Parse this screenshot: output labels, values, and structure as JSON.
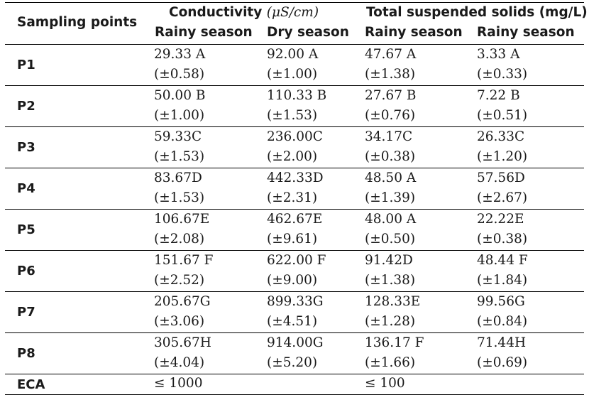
{
  "header": {
    "sampling_points": "Sampling points",
    "conductivity": "Conductivity",
    "conductivity_unit": "(μS/cm)",
    "tss": "Total suspended solids (mg/L)",
    "sub": [
      "Rainy season",
      "Dry season",
      "Rainy season",
      "Rainy season"
    ]
  },
  "rows": [
    {
      "label": "P1",
      "cells": [
        [
          "29.33 A",
          "(±0.58)"
        ],
        [
          "92.00 A",
          "(±1.00)"
        ],
        [
          "47.67 A",
          "(±1.38)"
        ],
        [
          "3.33 A",
          "(±0.33)"
        ]
      ]
    },
    {
      "label": "P2",
      "cells": [
        [
          "50.00 B",
          "(±1.00)"
        ],
        [
          "110.33 B",
          "(±1.53)"
        ],
        [
          "27.67 B",
          "(±0.76)"
        ],
        [
          "7.22 B",
          "(±0.51)"
        ]
      ]
    },
    {
      "label": "P3",
      "cells": [
        [
          "59.33C",
          "(±1.53)"
        ],
        [
          "236.00C",
          "(±2.00)"
        ],
        [
          "34.17C",
          "(±0.38)"
        ],
        [
          "26.33C",
          "(±1.20)"
        ]
      ]
    },
    {
      "label": "P4",
      "cells": [
        [
          "83.67D",
          "(±1.53)"
        ],
        [
          "442.33D",
          "(±2.31)"
        ],
        [
          "48.50 A",
          "(±1.39)"
        ],
        [
          "57.56D",
          "(±2.67)"
        ]
      ]
    },
    {
      "label": "P5",
      "cells": [
        [
          "106.67E",
          "(±2.08)"
        ],
        [
          "462.67E",
          "(±9.61)"
        ],
        [
          "48.00 A",
          "(±0.50)"
        ],
        [
          "22.22E",
          "(±0.38)"
        ]
      ]
    },
    {
      "label": "P6",
      "cells": [
        [
          "151.67 F",
          "(±2.52)"
        ],
        [
          "622.00 F",
          "(±9.00)"
        ],
        [
          "91.42D",
          "(±1.38)"
        ],
        [
          "48.44 F",
          "(±1.84)"
        ]
      ]
    },
    {
      "label": "P7",
      "cells": [
        [
          "205.67G",
          "(±3.06)"
        ],
        [
          "899.33G",
          "(±4.51)"
        ],
        [
          "128.33E",
          "(±1.28)"
        ],
        [
          "99.56G",
          "(±0.84)"
        ]
      ]
    },
    {
      "label": "P8",
      "cells": [
        [
          "305.67H",
          "(±4.04)"
        ],
        [
          "914.00G",
          "(±5.20)"
        ],
        [
          "136.17 F",
          "(±1.66)"
        ],
        [
          "71.44H",
          "(±0.69)"
        ]
      ]
    }
  ],
  "eca": {
    "label": "ECA",
    "conductivity": "≤ 1000",
    "tss": "≤ 100"
  }
}
